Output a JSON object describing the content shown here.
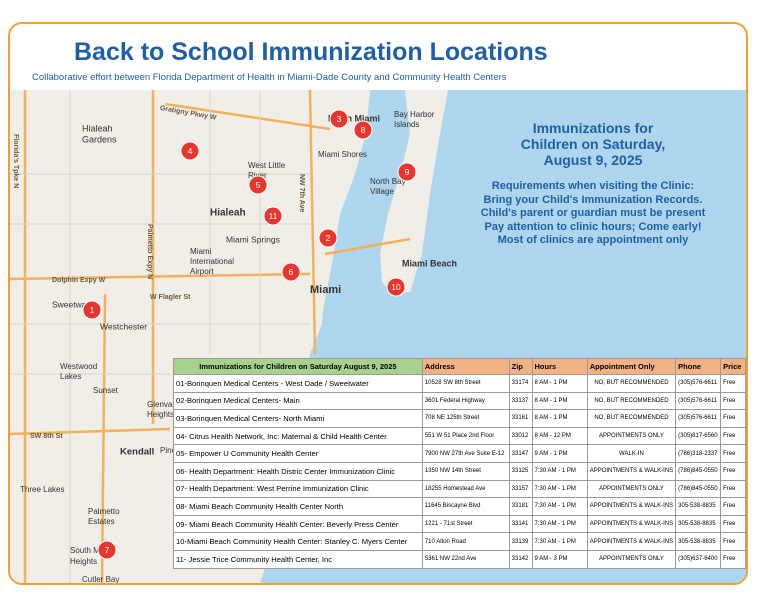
{
  "header": {
    "title": "Back to School Immunization Locations",
    "subtitle": "Collaborative effort between Florida Department of Health in Miami-Dade County and Community Health Centers"
  },
  "info": {
    "heading": [
      "Immunizations for",
      "Children on  Saturday,",
      "August 9, 2025"
    ],
    "requirements": [
      "Requirements when visiting the Clinic:",
      "Bring your Child's Immunization Records.",
      "Child's parent or guardian must be present",
      "Pay attention to clinic hours; Come early!",
      "Most of clinics are appointment only"
    ]
  },
  "map": {
    "places": [
      "Hialeah",
      "Gardens",
      "Hialeah",
      "West Little",
      "River",
      "Miami Shores",
      "North Bay",
      "Village",
      "Bay Harbor",
      "Islands",
      "Miami Springs",
      "Miami",
      "International",
      "Airport",
      "Miami",
      "Miami Beach",
      "Westchester",
      "Westwood",
      "Lakes",
      "Sunset",
      "Glenvar",
      "Heights",
      "Kendall",
      "Pinecrest",
      "Three Lakes",
      "Palmetto",
      "Estates",
      "South Miami",
      "Heights",
      "Cutler Bay",
      "Sweetwater",
      "North Miami"
    ],
    "roads": [
      "Gratigny Pkwy W",
      "Florida's Tpke N",
      "Palmetto Expy N",
      "Dolphin Expy W",
      "NW 7th Ave",
      "SW 8th St",
      "W Flagler St"
    ],
    "markers": [
      "1",
      "2",
      "3",
      "4",
      "5",
      "6",
      "7",
      "8",
      "9",
      "10",
      "11"
    ]
  },
  "table": {
    "columns": [
      "Immunizations for Children on Saturday August 9, 2025",
      "Address",
      "Zip",
      "Hours",
      "Appointment Only",
      "Phone",
      "Price"
    ],
    "rows": [
      [
        "01-Borinquen Medical Centers - West Dade / Sweetwater",
        "10528 SW 8th Street",
        "33174",
        "8 AM - 1 PM",
        "NO, BUT RECOMMENDED",
        "(305)576-6611",
        "Free"
      ],
      [
        "02-Borinquen Medical Centers- Main",
        "3601 Federal Highway",
        "33137",
        "8 AM - 1 PM",
        "NO, BUT RECOMMENDED",
        "(305)576-6611",
        "Free"
      ],
      [
        "03-Borinquen Medical Centers- North Miami",
        "708 NE 125th Street",
        "33161",
        "8 AM - 1 PM",
        "NO, BUT RECOMMENDED",
        "(305)576-6611",
        "Free"
      ],
      [
        "04- Citrus Health Network, Inc: Maternal & Child Health Center",
        "551 W 51 Place 2nd Floor",
        "33012",
        "8 AM - 12 PM",
        "APPOINTMENTS ONLY",
        "(305)817-6560",
        "Free"
      ],
      [
        "05- Empower U Community Health Center",
        "7900 NW 27th Ave Suite E-12",
        "33147",
        "9 AM - 1 PM",
        "WALK-IN",
        "(786)318-2337",
        "Free"
      ],
      [
        "06- Health Department: Health Distric Center Immunization Clinic",
        "1350 NW 14th Street",
        "33125",
        "7:30 AM - 1 PM",
        "APPOINTMENTS & WALK-INS",
        "(786)845-0550",
        "Free"
      ],
      [
        "07- Health Department: West Perrine Immunization Clinic",
        "18255 Homestead Ave",
        "33157",
        "7:30 AM - 1 PM",
        "APPOINTMENTS ONLY",
        "(786)845-0550",
        "Free"
      ],
      [
        "08- Miami Beach Community Health Center North",
        "11645 Biscayne Blvd",
        "33181",
        "7:30 AM - 1 PM",
        "APPOINTMENTS & WALK-INS",
        "305-538-8835",
        "Free"
      ],
      [
        "09- Miami Beach Community Health Center: Beverly Press Center",
        "1221 - 71st Street",
        "33141",
        "7:30 AM - 1 PM",
        "APPOINTMENTS & WALK-INS",
        "305-538-8835",
        "Free"
      ],
      [
        "10-Miami Beach Community Health Center: Stanley C. Myers Center",
        "710 Alton Road",
        "33139",
        "7:30 AM - 1 PM",
        "APPOINTMENTS & WALK-INS",
        "305-538-8835",
        "Free"
      ],
      [
        "11- Jessie Trice Community Health Center, Inc",
        "5361 NW 22nd Ave",
        "33142",
        "9 AM - 3 PM",
        "APPOINTMENTS ONLY",
        "(305)637-6400",
        "Free"
      ]
    ]
  }
}
